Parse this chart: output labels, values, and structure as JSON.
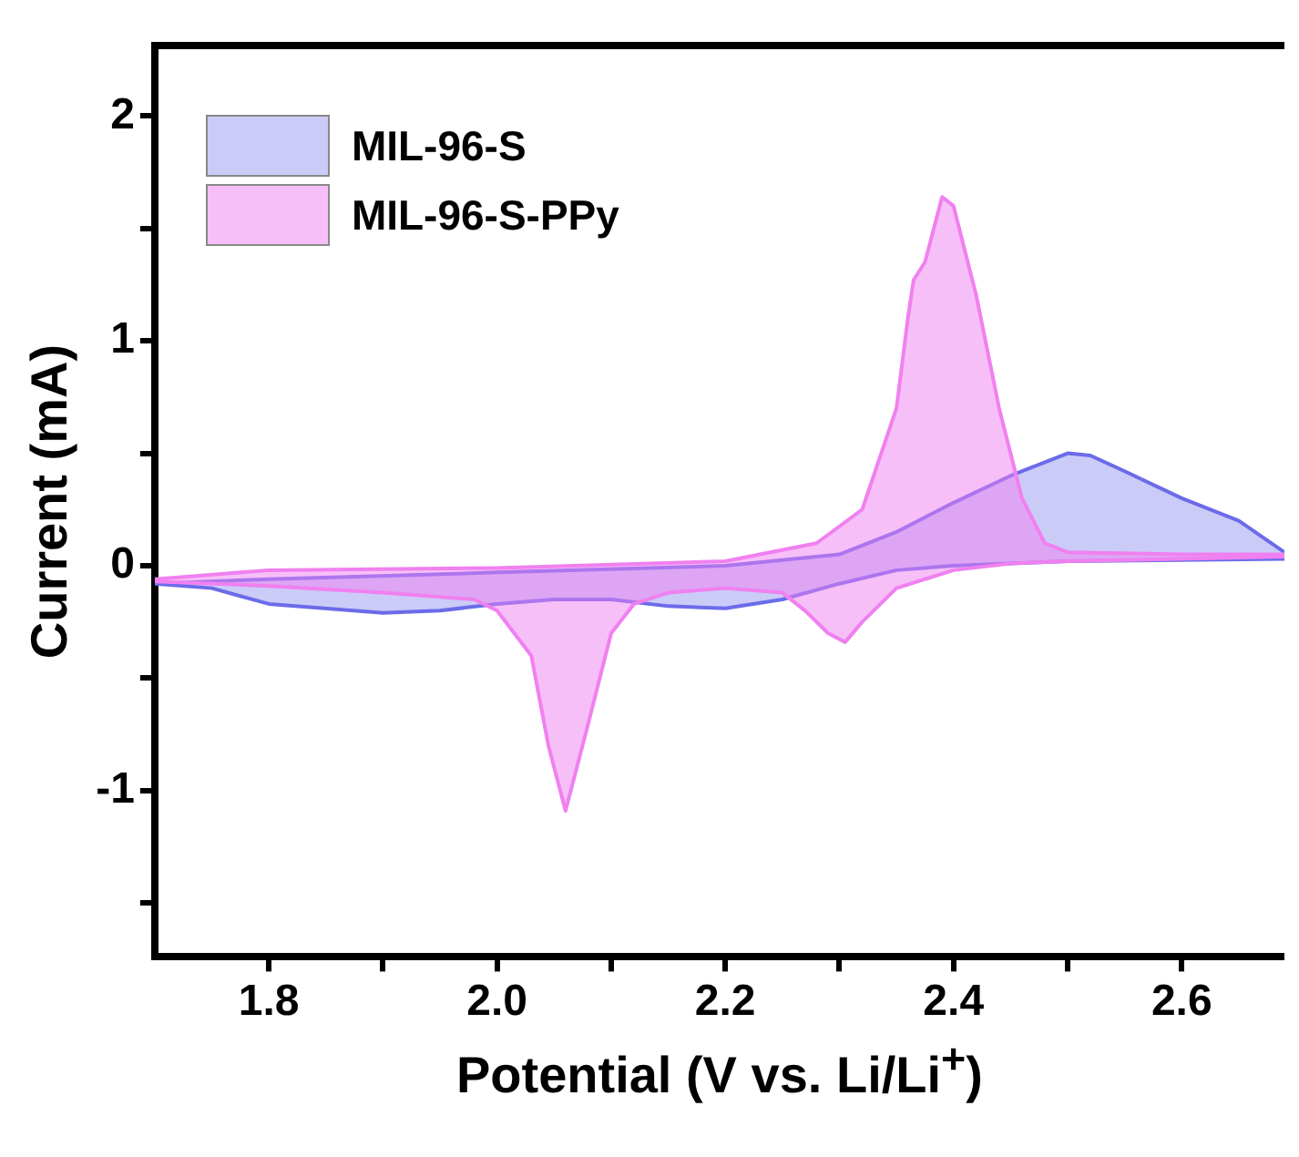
{
  "chart_data": {
    "type": "area",
    "xlabel": "Potential (V vs. Li/Li$^{+}$)",
    "ylabel": "Current (mA)",
    "xlim": [
      1.7,
      2.69
    ],
    "xticks": [
      1.8,
      {
        "value": 1.9,
        "label": null
      },
      {
        "value": 2,
        "label": "2.0"
      },
      {
        "value": 2.1,
        "label": null
      },
      2.2,
      {
        "value": 2.3,
        "label": null
      },
      2.4,
      {
        "value": 2.5,
        "label": null
      },
      2.6
    ],
    "ylim": [
      -1.74,
      2.31
    ],
    "yticks": [
      {
        "value": -1.5,
        "label": null
      },
      -1,
      {
        "value": -0.5,
        "label": null
      },
      0,
      {
        "value": 0.5,
        "label": null
      },
      1,
      {
        "value": 1.5,
        "label": null
      },
      2
    ],
    "grid": false,
    "legend": "top left",
    "series": [
      {
        "name": "MIL-96-S",
        "color": "#6b6bea",
        "x": [
          1.7,
          1.8,
          2.0,
          2.2,
          2.3,
          2.35,
          2.4,
          2.45,
          2.5,
          2.52,
          2.55,
          2.6,
          2.65,
          2.69,
          2.69,
          2.5,
          2.4,
          2.35,
          2.3,
          2.25,
          2.2,
          2.15,
          2.1,
          2.05,
          2.0,
          1.95,
          1.9,
          1.8,
          1.75,
          1.7
        ],
        "values": [
          -0.08,
          -0.06,
          -0.03,
          0.0,
          0.05,
          0.15,
          0.28,
          0.4,
          0.5,
          0.49,
          0.42,
          0.3,
          0.2,
          0.06,
          0.03,
          0.02,
          0.0,
          -0.02,
          -0.08,
          -0.15,
          -0.19,
          -0.18,
          -0.15,
          -0.15,
          -0.17,
          -0.2,
          -0.21,
          -0.17,
          -0.1,
          -0.08
        ]
      },
      {
        "name": "MIL-96-S-PPy",
        "color": "#f080f0",
        "x": [
          1.7,
          1.8,
          2.0,
          2.2,
          2.28,
          2.32,
          2.35,
          2.36,
          2.365,
          2.375,
          2.39,
          2.4,
          2.42,
          2.44,
          2.46,
          2.48,
          2.5,
          2.6,
          2.69,
          2.69,
          2.5,
          2.45,
          2.4,
          2.35,
          2.32,
          2.305,
          2.29,
          2.27,
          2.25,
          2.2,
          2.15,
          2.12,
          2.1,
          2.08,
          2.06,
          2.045,
          2.03,
          2.0,
          1.98,
          1.9,
          1.8,
          1.7
        ],
        "values": [
          -0.06,
          -0.02,
          -0.01,
          0.02,
          0.1,
          0.25,
          0.7,
          1.1,
          1.27,
          1.35,
          1.64,
          1.6,
          1.2,
          0.7,
          0.3,
          0.1,
          0.06,
          0.05,
          0.05,
          0.04,
          0.02,
          0.01,
          -0.02,
          -0.1,
          -0.25,
          -0.34,
          -0.3,
          -0.2,
          -0.12,
          -0.1,
          -0.12,
          -0.17,
          -0.3,
          -0.7,
          -1.09,
          -0.8,
          -0.4,
          -0.2,
          -0.15,
          -0.12,
          -0.09,
          -0.07
        ]
      }
    ]
  }
}
